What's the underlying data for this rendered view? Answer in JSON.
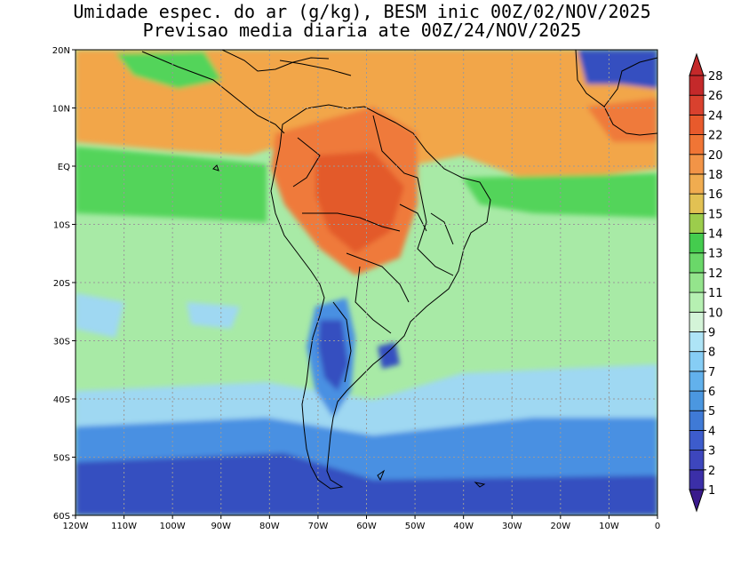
{
  "title": {
    "line1": "Umidade espec. do ar (g/kg), BESM inic 00Z/02/NOV/2025",
    "line2": "Previsao media diaria ate 00Z/24/NOV/2025"
  },
  "map": {
    "lat_labels": [
      "20N",
      "10N",
      "EQ",
      "10S",
      "20S",
      "30S",
      "40S",
      "50S",
      "60S"
    ],
    "lat_values": [
      20,
      10,
      0,
      -10,
      -20,
      -30,
      -40,
      -50,
      -60
    ],
    "lon_labels": [
      "120W",
      "110W",
      "100W",
      "90W",
      "80W",
      "70W",
      "60W",
      "50W",
      "40W",
      "30W",
      "20W",
      "10W",
      "0"
    ],
    "lon_values": [
      -120,
      -110,
      -100,
      -90,
      -80,
      -70,
      -60,
      -50,
      -40,
      -30,
      -20,
      -10,
      0
    ],
    "lon_range": [
      -120,
      0
    ],
    "lat_range": [
      -60,
      20
    ],
    "grid": true
  },
  "colorbar": {
    "labels": [
      "1",
      "2",
      "3",
      "4",
      "5",
      "6",
      "7",
      "8",
      "9",
      "10",
      "11",
      "12",
      "13",
      "14",
      "15",
      "16",
      "18",
      "20",
      "22",
      "24",
      "26",
      "28"
    ],
    "colors": [
      "#3a1a8c",
      "#3b2fa8",
      "#3d46bd",
      "#3d5ccc",
      "#3f7ad6",
      "#4b97e0",
      "#62b1ec",
      "#86cdf5",
      "#aee4f6",
      "#d4f4d8",
      "#b6f0b2",
      "#94e48c",
      "#6ad869",
      "#44cc4e",
      "#9ccd4c",
      "#e2c153",
      "#f0ac50",
      "#f29447",
      "#f07535",
      "#e85a2c",
      "#d9412e",
      "#c4292a"
    ]
  },
  "palette": {
    "ocean_base": "#a8eaa6",
    "high": "#f2a64a",
    "amazon": "#ef7a3a",
    "core": "#e35a2a",
    "green": "#52d45a",
    "light_blue": "#9fd8f2",
    "blue": "#4a90e2",
    "dark_blue": "#3550c0"
  }
}
